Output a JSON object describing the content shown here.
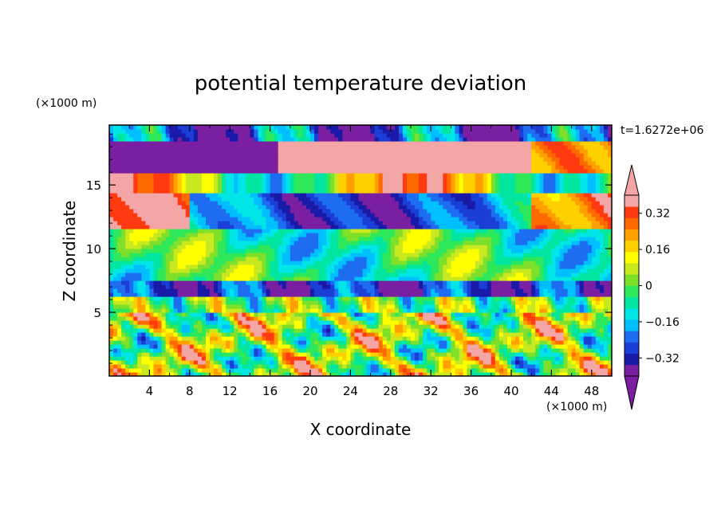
{
  "chart_data": {
    "type": "heatmap",
    "title": "potential temperature deviation",
    "xlabel": "X coordinate",
    "ylabel": "Z coordinate",
    "x_unit": "(×1000 m)",
    "y_unit": "(×1000 m)",
    "time_label": "t=1.6272e+06",
    "xlim": [
      0,
      50
    ],
    "ylim": [
      0,
      19.7
    ],
    "x_ticks": [
      "4",
      "8",
      "12",
      "16",
      "20",
      "24",
      "28",
      "32",
      "36",
      "40",
      "44",
      "48"
    ],
    "x_tick_values": [
      4,
      8,
      12,
      16,
      20,
      24,
      28,
      32,
      36,
      40,
      44,
      48
    ],
    "y_ticks": [
      "5",
      "10",
      "15"
    ],
    "y_tick_values": [
      5,
      10,
      15
    ],
    "colorbar": {
      "levels": [
        -0.4,
        -0.36,
        -0.32,
        -0.28,
        -0.24,
        -0.2,
        -0.16,
        -0.12,
        -0.08,
        -0.04,
        0,
        0.04,
        0.08,
        0.12,
        0.16,
        0.2,
        0.24,
        0.28,
        0.32,
        0.36,
        0.4
      ],
      "tick_labels": [
        "0.32",
        "0.16",
        "0",
        "−0.16",
        "−0.32"
      ],
      "tick_values": [
        0.32,
        0.16,
        0,
        -0.16,
        -0.32
      ],
      "colors": [
        "#7b1fa2",
        "#1a1aa8",
        "#1a3ed6",
        "#1e6cf0",
        "#00bfff",
        "#00e5e5",
        "#00e6a0",
        "#2ee85a",
        "#7ee02a",
        "#c8e820",
        "#ffff00",
        "#ffd000",
        "#ff9f00",
        "#ff6a00",
        "#ff3a10",
        "#f4a6a6"
      ],
      "under_color": "#7b1fa2",
      "over_color": "#f4a6a6"
    }
  }
}
